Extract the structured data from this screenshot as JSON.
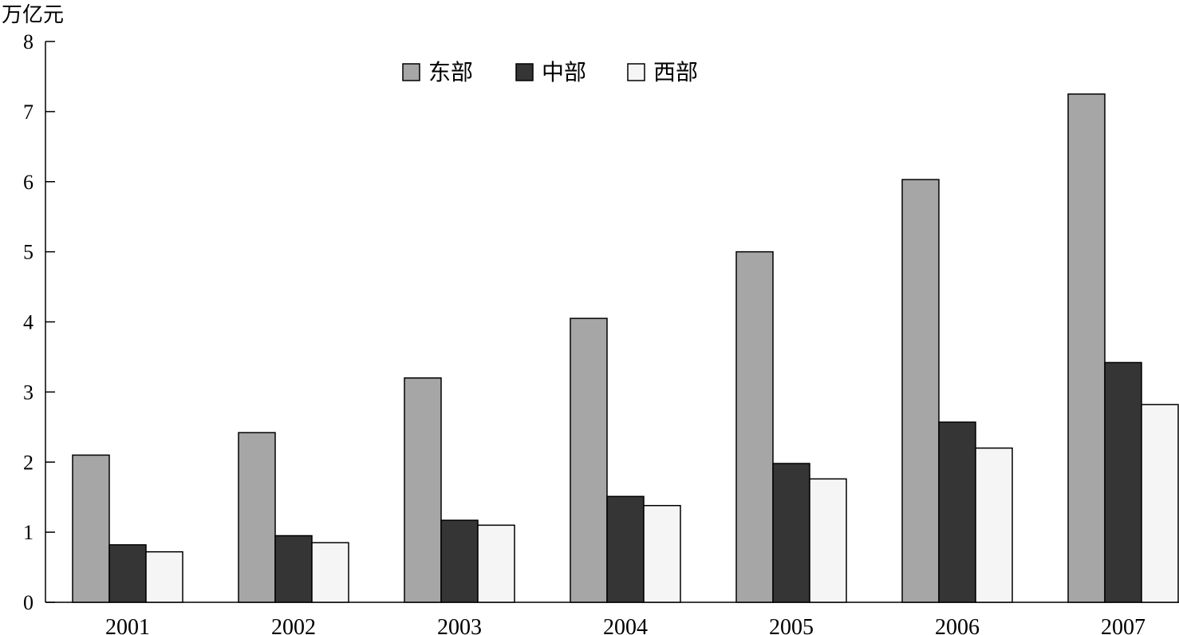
{
  "chart_data": {
    "type": "bar",
    "ylabel": "万亿元",
    "ylim": [
      0,
      8
    ],
    "yticks": [
      0,
      1,
      2,
      3,
      4,
      5,
      6,
      7,
      8
    ],
    "categories": [
      "2001",
      "2002",
      "2003",
      "2004",
      "2005",
      "2006",
      "2007"
    ],
    "legend_position": "top-center",
    "grid": false,
    "series": [
      {
        "name": "东部",
        "color": "#a6a6a6",
        "values": [
          2.1,
          2.42,
          3.2,
          4.05,
          5.0,
          6.03,
          7.25
        ]
      },
      {
        "name": "中部",
        "color": "#353535",
        "values": [
          0.82,
          0.95,
          1.17,
          1.51,
          1.98,
          2.57,
          3.42
        ]
      },
      {
        "name": "西部",
        "color": "#f5f5f5",
        "values": [
          0.72,
          0.85,
          1.1,
          1.38,
          1.76,
          2.2,
          2.82
        ]
      }
    ]
  }
}
